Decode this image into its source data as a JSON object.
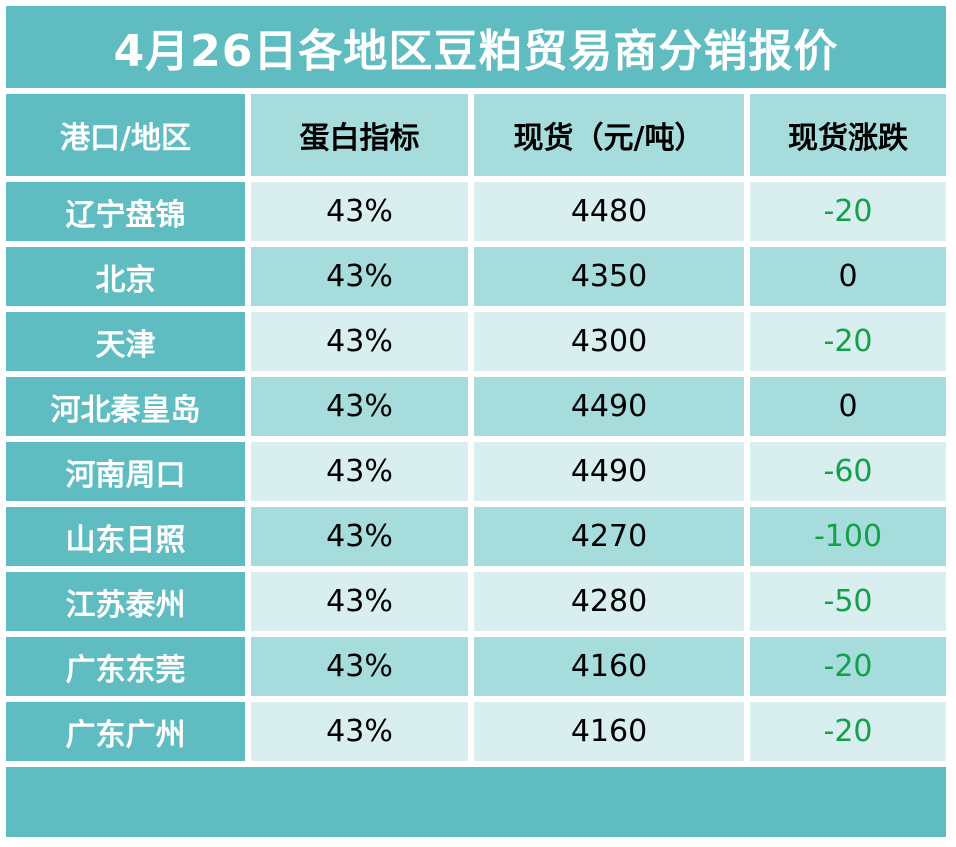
{
  "title": "4月26日各地区豆粕贸易商分销报价",
  "headers": [
    "港口/地区",
    "蛋白指标",
    "现货（元/吨）",
    "现货涨跌"
  ],
  "rows": [
    {
      "region": "辽宁盘锦",
      "protein": "43%",
      "price": "4480",
      "change": "-20"
    },
    {
      "region": "北京",
      "protein": "43%",
      "price": "4350",
      "change": "0"
    },
    {
      "region": "天津",
      "protein": "43%",
      "price": "4300",
      "change": "-20"
    },
    {
      "region": "河北秦皇岛",
      "protein": "43%",
      "price": "4490",
      "change": "0"
    },
    {
      "region": "河南周口",
      "protein": "43%",
      "price": "4490",
      "change": "-60"
    },
    {
      "region": "山东日照",
      "protein": "43%",
      "price": "4270",
      "change": "-100"
    },
    {
      "region": "江苏泰州",
      "protein": "43%",
      "price": "4280",
      "change": "-50"
    },
    {
      "region": "广东东莞",
      "protein": "43%",
      "price": "4160",
      "change": "-20"
    },
    {
      "region": "广东广州",
      "protein": "43%",
      "price": "4160",
      "change": "-20"
    }
  ],
  "colors": {
    "teal_dark": "#5fbdc1",
    "teal_mid": "#a6dcdc",
    "teal_light": "#d9efef",
    "negative_change": "#14a04a"
  }
}
